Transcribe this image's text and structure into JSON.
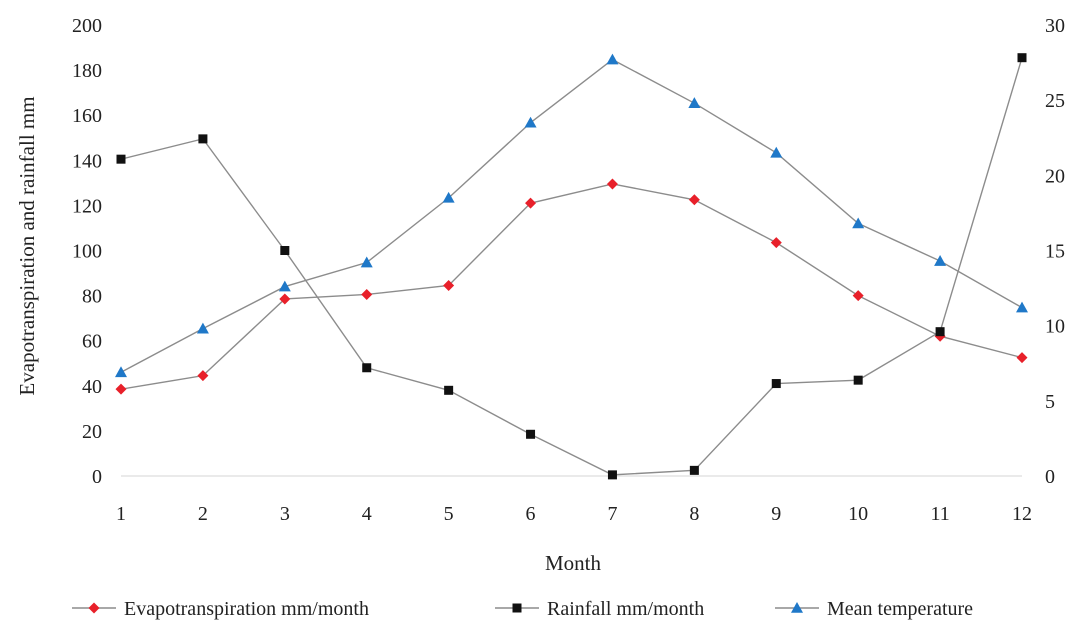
{
  "chart_data": {
    "type": "line",
    "xlabel": "Month",
    "ylabel": "Evapotranspiration and rainfall mm",
    "categories": [
      "1",
      "2",
      "3",
      "4",
      "5",
      "6",
      "7",
      "8",
      "9",
      "10",
      "11",
      "12"
    ],
    "ylim": [
      0,
      200
    ],
    "yticks": [
      "0",
      "20",
      "40",
      "60",
      "80",
      "100",
      "120",
      "140",
      "160",
      "180",
      "200"
    ],
    "y2lim": [
      0,
      30
    ],
    "y2ticks": [
      "0",
      "5",
      "10",
      "15",
      "20",
      "25",
      "30"
    ],
    "grid": false,
    "legend_position": "bottom",
    "series": [
      {
        "name": "Evapotranspiration  mm/month",
        "axis": "left",
        "marker": "diamond",
        "color": "#e8202a",
        "values": [
          38.5,
          44.5,
          78.5,
          80.5,
          84.5,
          121,
          129.5,
          122.5,
          103.5,
          80,
          62,
          52.5
        ]
      },
      {
        "name": "Rainfall mm/month",
        "axis": "left",
        "marker": "square",
        "color": "#111111",
        "values": [
          140.5,
          149.5,
          100,
          48,
          38,
          18.5,
          0.5,
          2.5,
          41,
          42.5,
          64,
          185.5
        ]
      },
      {
        "name": "Mean temperature",
        "axis": "right",
        "marker": "triangle",
        "color": "#1f78c8",
        "values": [
          6.9,
          9.8,
          12.6,
          14.2,
          18.5,
          23.5,
          27.7,
          24.8,
          21.5,
          16.8,
          14.3,
          11.2
        ]
      }
    ]
  }
}
